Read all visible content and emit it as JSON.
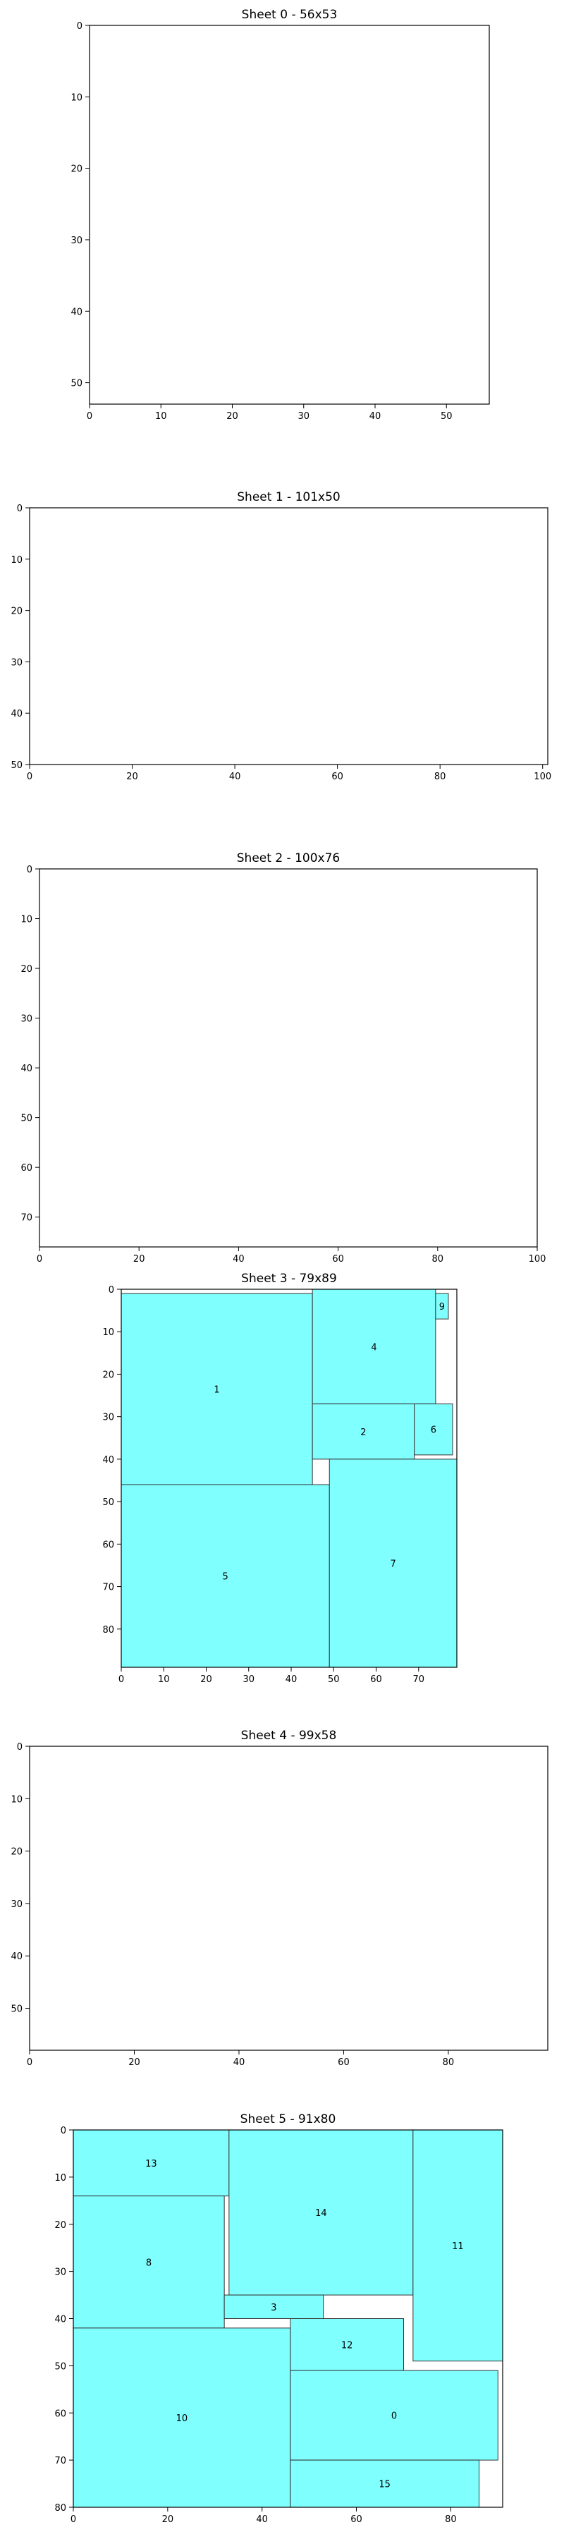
{
  "chart_data": [
    {
      "type": "rectangle-packing",
      "title": "Sheet 0 - 56x53",
      "xlim": [
        0,
        56
      ],
      "ylim": [
        0,
        53
      ],
      "y_inverted": true,
      "xticks": [
        0,
        10,
        20,
        30,
        40,
        50
      ],
      "yticks": [
        0,
        10,
        20,
        30,
        40,
        50
      ],
      "rects": []
    },
    {
      "type": "rectangle-packing",
      "title": "Sheet 1 - 101x50",
      "xlim": [
        0,
        101
      ],
      "ylim": [
        0,
        50
      ],
      "y_inverted": true,
      "xticks": [
        0,
        20,
        40,
        60,
        80,
        100
      ],
      "yticks": [
        0,
        10,
        20,
        30,
        40,
        50
      ],
      "rects": []
    },
    {
      "type": "rectangle-packing",
      "title": "Sheet 2 - 100x76",
      "xlim": [
        0,
        100
      ],
      "ylim": [
        0,
        76
      ],
      "y_inverted": true,
      "xticks": [
        0,
        20,
        40,
        60,
        80,
        100
      ],
      "yticks": [
        0,
        10,
        20,
        30,
        40,
        50,
        60,
        70
      ],
      "rects": []
    },
    {
      "type": "rectangle-packing",
      "title": "Sheet 3 - 79x89",
      "xlim": [
        0,
        79
      ],
      "ylim": [
        0,
        89
      ],
      "y_inverted": true,
      "xticks": [
        0,
        10,
        20,
        30,
        40,
        50,
        60,
        70
      ],
      "yticks": [
        0,
        10,
        20,
        30,
        40,
        50,
        60,
        70,
        80
      ],
      "fill_color": "#80ffff",
      "rects": [
        {
          "label": "1",
          "x": 0,
          "y": 1,
          "w": 45,
          "h": 45
        },
        {
          "label": "4",
          "x": 45,
          "y": 0,
          "w": 29,
          "h": 27
        },
        {
          "label": "9",
          "x": 74,
          "y": 1,
          "w": 3,
          "h": 6
        },
        {
          "label": "2",
          "x": 45,
          "y": 27,
          "w": 24,
          "h": 13
        },
        {
          "label": "6",
          "x": 69,
          "y": 27,
          "w": 9,
          "h": 12
        },
        {
          "label": "5",
          "x": 0,
          "y": 46,
          "w": 49,
          "h": 43
        },
        {
          "label": "7",
          "x": 49,
          "y": 40,
          "w": 30,
          "h": 49
        }
      ]
    },
    {
      "type": "rectangle-packing",
      "title": "Sheet 4 - 99x58",
      "xlim": [
        0,
        99
      ],
      "ylim": [
        0,
        58
      ],
      "y_inverted": true,
      "xticks": [
        0,
        20,
        40,
        60,
        80
      ],
      "yticks": [
        0,
        10,
        20,
        30,
        40,
        50
      ],
      "rects": []
    },
    {
      "type": "rectangle-packing",
      "title": "Sheet 5 - 91x80",
      "xlim": [
        0,
        91
      ],
      "ylim": [
        0,
        80
      ],
      "y_inverted": true,
      "xticks": [
        0,
        20,
        40,
        60,
        80
      ],
      "yticks": [
        0,
        10,
        20,
        30,
        40,
        50,
        60,
        70,
        80
      ],
      "fill_color": "#80ffff",
      "rects": [
        {
          "label": "13",
          "x": 0,
          "y": 0,
          "w": 33,
          "h": 14
        },
        {
          "label": "14",
          "x": 33,
          "y": 0,
          "w": 39,
          "h": 35
        },
        {
          "label": "11",
          "x": 72,
          "y": 0,
          "w": 19,
          "h": 49
        },
        {
          "label": "8",
          "x": 0,
          "y": 14,
          "w": 32,
          "h": 28
        },
        {
          "label": "3",
          "x": 32,
          "y": 35,
          "w": 21,
          "h": 5
        },
        {
          "label": "12",
          "x": 46,
          "y": 40,
          "w": 24,
          "h": 11
        },
        {
          "label": "10",
          "x": 0,
          "y": 42,
          "w": 46,
          "h": 38
        },
        {
          "label": "0",
          "x": 46,
          "y": 51,
          "w": 44,
          "h": 19
        },
        {
          "label": "15",
          "x": 46,
          "y": 70,
          "w": 40,
          "h": 10
        }
      ]
    }
  ]
}
